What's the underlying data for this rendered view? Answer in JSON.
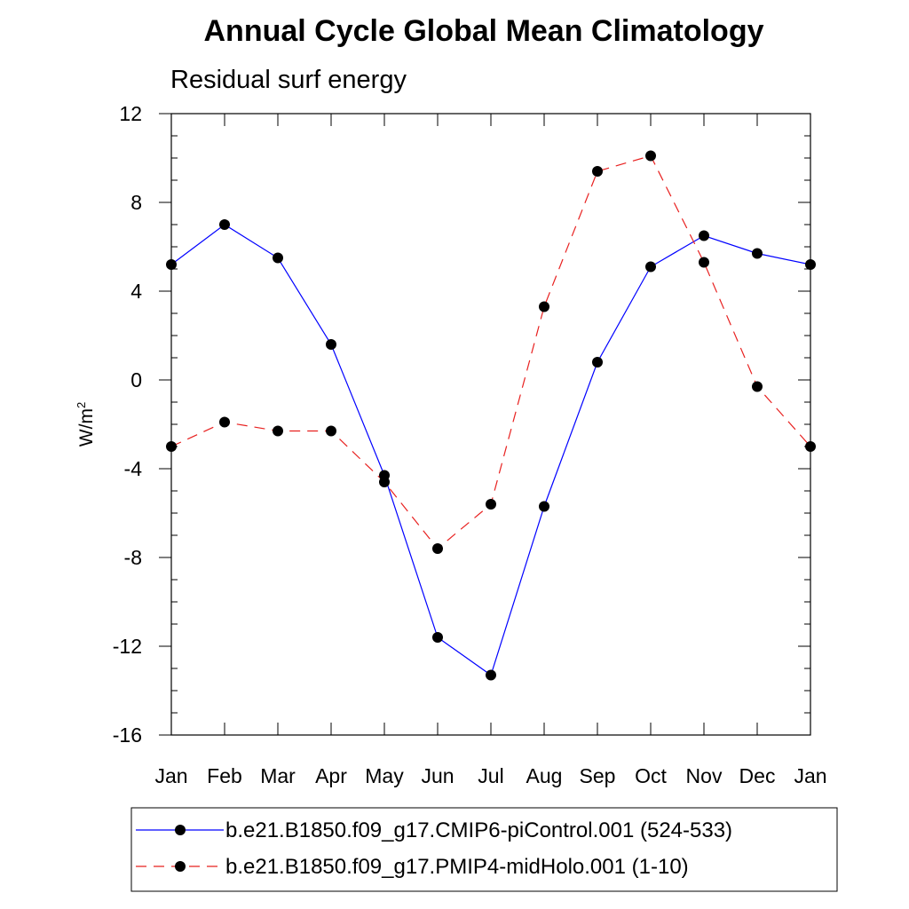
{
  "chart_data": {
    "type": "line",
    "title": "Annual Cycle Global Mean Climatology",
    "subtitle": "Residual surf energy",
    "ylabel": "W/m",
    "ylabel_sup": "2",
    "xlabel": "",
    "categories": [
      "Jan",
      "Feb",
      "Mar",
      "Apr",
      "May",
      "Jun",
      "Jul",
      "Aug",
      "Sep",
      "Oct",
      "Nov",
      "Dec",
      "Jan"
    ],
    "ylim": [
      -16,
      12
    ],
    "yticks": [
      12,
      8,
      4,
      0,
      -4,
      -8,
      -12,
      -16
    ],
    "ytick_labels": [
      "12",
      "8",
      "4",
      "0",
      "-4",
      "-8",
      "-12",
      "-16"
    ],
    "grid": false,
    "legend_position": "bottom",
    "series": [
      {
        "name": "b.e21.B1850.f09_g17.CMIP6-piControl.001 (524-533)",
        "color": "#0000ff",
        "dash": "solid",
        "values": [
          5.2,
          7.0,
          5.5,
          1.6,
          -4.3,
          -11.6,
          -13.3,
          -5.7,
          0.8,
          5.1,
          6.5,
          5.7,
          5.2
        ]
      },
      {
        "name": "b.e21.B1850.f09_g17.PMIP4-midHolo.001 (1-10)",
        "color": "#e8201f",
        "dash": "dashed",
        "values": [
          -3.0,
          -1.9,
          -2.3,
          -2.3,
          -4.6,
          -7.6,
          -5.6,
          3.3,
          9.4,
          10.1,
          5.3,
          -0.3,
          -3.0
        ]
      }
    ]
  }
}
